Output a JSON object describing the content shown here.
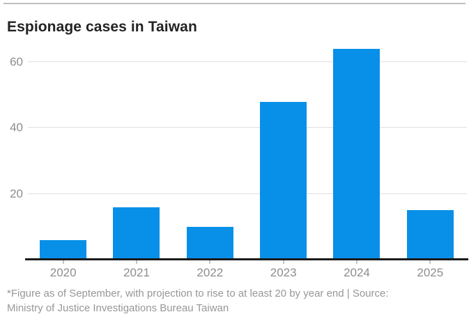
{
  "page": {
    "footnote_lines": [
      "*Figure as of September, with projection to rise to at least 20 by year end | Source:",
      "Ministry of Justice Investigations Bureau Taiwan"
    ]
  },
  "colors": {
    "bar": "#0890e8",
    "axis": "#1a1a1a",
    "gridline": "#e0e0e0",
    "axis_label": "#8d8d8d",
    "footnote": "#979797",
    "title": "#232323",
    "top_rule": "#bebebe",
    "background": "#ffffff"
  },
  "chart_data": {
    "type": "bar",
    "title": "Espionage cases in Taiwan",
    "categories": [
      "2020",
      "2021",
      "2022",
      "2023",
      "2024",
      "2025"
    ],
    "values": [
      6,
      16,
      10,
      48,
      64,
      15
    ],
    "xlabel": "",
    "ylabel": "",
    "yticks": [
      20,
      40,
      60
    ],
    "ylim": [
      0,
      67
    ],
    "grid": true,
    "legend_position": "none",
    "footnote": "*Figure as of September, with projection to rise to at least 20 by year end | Source: Ministry of Justice Investigations Bureau Taiwan"
  }
}
